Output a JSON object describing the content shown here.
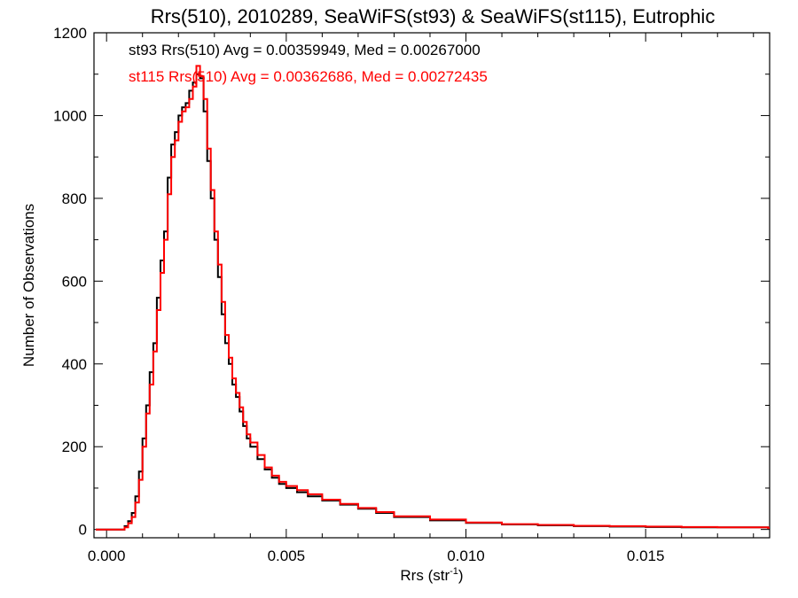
{
  "chart_data": {
    "type": "line",
    "title": "Rrs(510), 2010289, SeaWiFS(st93) & SeaWiFS(st115), Eutrophic",
    "xlabel_main": "Rrs (str",
    "xlabel_sup": "-1",
    "xlabel_end": ")",
    "ylabel": "Number of Observations",
    "xlim": [
      -0.00035,
      0.01845
    ],
    "ylim": [
      -20,
      1200
    ],
    "x_ticks": [
      0.0,
      0.005,
      0.01,
      0.015
    ],
    "x_tick_labels": [
      "0.000",
      "0.005",
      "0.010",
      "0.015"
    ],
    "y_ticks": [
      0,
      200,
      400,
      600,
      800,
      1000,
      1200
    ],
    "y_tick_labels": [
      "0",
      "200",
      "400",
      "600",
      "800",
      "1000",
      "1200"
    ],
    "grid": false,
    "series": [
      {
        "id": "st93",
        "color": "#000000",
        "annotation": "st93 Rrs(510) Avg = 0.00359949, Med = 0.00267000",
        "x": [
          -0.0003,
          0.0003,
          0.0005,
          0.0006,
          0.0007,
          0.0008,
          0.0009,
          0.001,
          0.0011,
          0.0012,
          0.0013,
          0.0014,
          0.0015,
          0.0016,
          0.0017,
          0.0018,
          0.0019,
          0.002,
          0.0021,
          0.0022,
          0.0023,
          0.0024,
          0.0025,
          0.0026,
          0.0027,
          0.0028,
          0.0029,
          0.003,
          0.0031,
          0.0032,
          0.0033,
          0.0034,
          0.0035,
          0.0036,
          0.0037,
          0.0038,
          0.0039,
          0.004,
          0.0042,
          0.0044,
          0.0046,
          0.0048,
          0.005,
          0.0053,
          0.0056,
          0.006,
          0.0065,
          0.007,
          0.0075,
          0.008,
          0.009,
          0.01,
          0.011,
          0.012,
          0.013,
          0.014,
          0.015,
          0.016,
          0.017,
          0.0184
        ],
        "y": [
          0,
          0,
          8,
          20,
          40,
          80,
          140,
          220,
          300,
          380,
          450,
          560,
          650,
          720,
          850,
          930,
          960,
          1000,
          1020,
          1030,
          1060,
          1080,
          1100,
          1090,
          1010,
          890,
          800,
          700,
          610,
          520,
          450,
          400,
          350,
          320,
          285,
          250,
          220,
          200,
          170,
          145,
          125,
          110,
          100,
          90,
          80,
          70,
          60,
          50,
          40,
          30,
          22,
          16,
          12,
          10,
          8,
          7,
          6,
          5,
          5,
          4
        ]
      },
      {
        "id": "st115",
        "color": "#ff0000",
        "annotation": "st115 Rrs(510) Avg = 0.00362686, Med = 0.00272435",
        "x": [
          -0.0003,
          0.0003,
          0.0005,
          0.0006,
          0.0007,
          0.0008,
          0.0009,
          0.001,
          0.0011,
          0.0012,
          0.0013,
          0.0014,
          0.0015,
          0.0016,
          0.0017,
          0.0018,
          0.0019,
          0.002,
          0.0021,
          0.0022,
          0.0023,
          0.0024,
          0.0025,
          0.0026,
          0.0027,
          0.0028,
          0.0029,
          0.003,
          0.0031,
          0.0032,
          0.0033,
          0.0034,
          0.0035,
          0.0036,
          0.0037,
          0.0038,
          0.0039,
          0.004,
          0.0042,
          0.0044,
          0.0046,
          0.0048,
          0.005,
          0.0053,
          0.0056,
          0.006,
          0.0065,
          0.007,
          0.0075,
          0.008,
          0.009,
          0.01,
          0.011,
          0.012,
          0.013,
          0.014,
          0.015,
          0.016,
          0.017,
          0.0184
        ],
        "y": [
          0,
          0,
          5,
          15,
          30,
          65,
          120,
          200,
          280,
          350,
          430,
          530,
          620,
          700,
          810,
          900,
          940,
          985,
          1010,
          1020,
          1040,
          1070,
          1120,
          1095,
          1040,
          920,
          820,
          720,
          640,
          550,
          470,
          415,
          365,
          330,
          295,
          260,
          230,
          210,
          180,
          150,
          130,
          115,
          105,
          95,
          85,
          72,
          62,
          52,
          42,
          32,
          24,
          17,
          13,
          11,
          9,
          8,
          7,
          6,
          5,
          4
        ]
      }
    ]
  }
}
